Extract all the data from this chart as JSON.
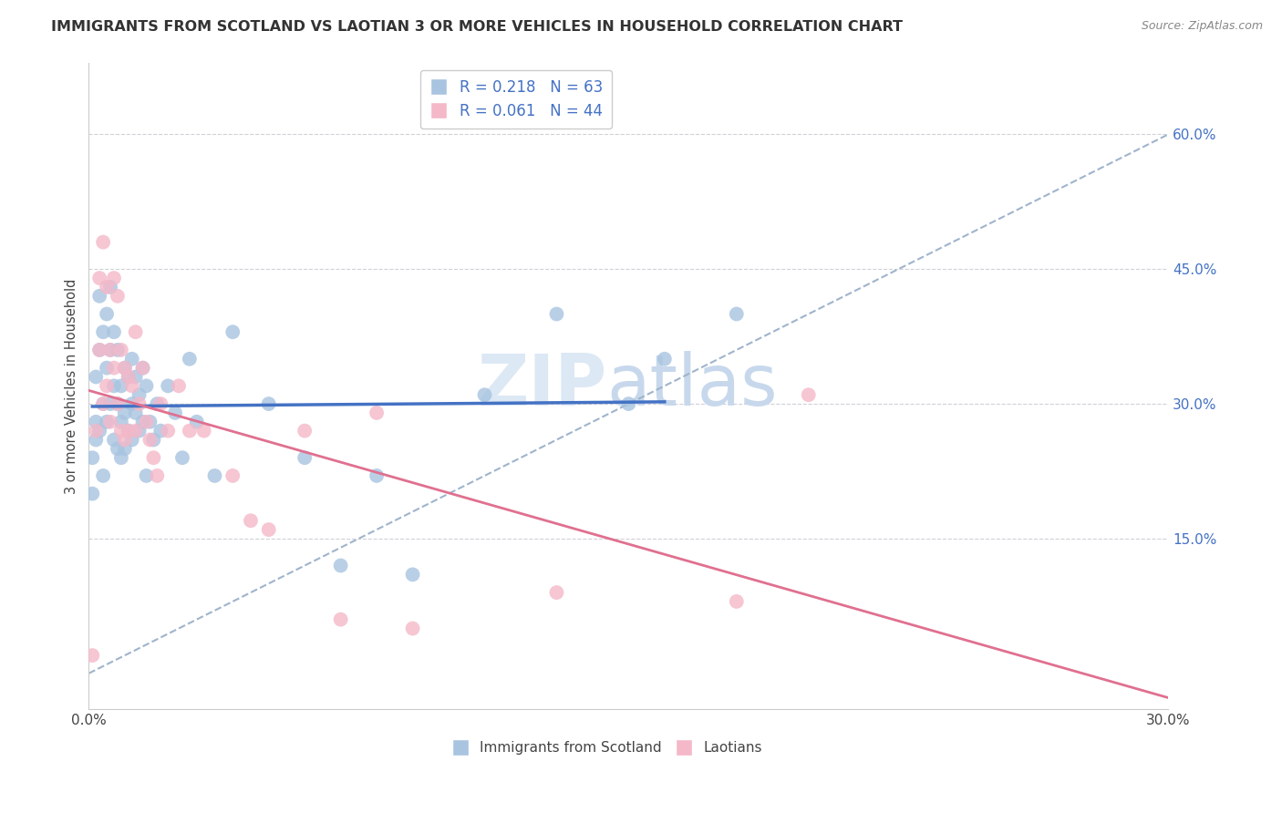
{
  "title": "IMMIGRANTS FROM SCOTLAND VS LAOTIAN 3 OR MORE VEHICLES IN HOUSEHOLD CORRELATION CHART",
  "source": "Source: ZipAtlas.com",
  "ylabel": "3 or more Vehicles in Household",
  "legend_labels": [
    "Immigrants from Scotland",
    "Laotians"
  ],
  "r_scotland": 0.218,
  "n_scotland": 63,
  "r_laotian": 0.061,
  "n_laotian": 44,
  "xlim": [
    0.0,
    0.3
  ],
  "ylim": [
    -0.04,
    0.68
  ],
  "yticks_right": [
    0.15,
    0.3,
    0.45,
    0.6
  ],
  "ytick_right_labels": [
    "15.0%",
    "30.0%",
    "45.0%",
    "60.0%"
  ],
  "xticks": [
    0.0,
    0.05,
    0.1,
    0.15,
    0.2,
    0.25,
    0.3
  ],
  "xtick_labels": [
    "0.0%",
    "",
    "",
    "",
    "",
    "",
    "30.0%"
  ],
  "color_scotland": "#a8c4e0",
  "color_laotian": "#f4b8c8",
  "line_color_scotland": "#4472c4",
  "line_color_laotian": "#e07090",
  "ref_line_color": "#a0b4cc",
  "scotland_x": [
    0.001,
    0.001,
    0.002,
    0.002,
    0.002,
    0.003,
    0.003,
    0.003,
    0.004,
    0.004,
    0.004,
    0.005,
    0.005,
    0.005,
    0.006,
    0.006,
    0.006,
    0.007,
    0.007,
    0.007,
    0.008,
    0.008,
    0.008,
    0.009,
    0.009,
    0.009,
    0.01,
    0.01,
    0.01,
    0.011,
    0.011,
    0.012,
    0.012,
    0.012,
    0.013,
    0.013,
    0.014,
    0.014,
    0.015,
    0.015,
    0.016,
    0.016,
    0.017,
    0.018,
    0.019,
    0.02,
    0.022,
    0.024,
    0.026,
    0.028,
    0.03,
    0.035,
    0.04,
    0.05,
    0.06,
    0.07,
    0.08,
    0.09,
    0.11,
    0.13,
    0.15,
    0.16,
    0.18
  ],
  "scotland_y": [
    0.24,
    0.2,
    0.28,
    0.33,
    0.26,
    0.36,
    0.42,
    0.27,
    0.38,
    0.3,
    0.22,
    0.34,
    0.4,
    0.28,
    0.43,
    0.36,
    0.3,
    0.38,
    0.32,
    0.26,
    0.36,
    0.3,
    0.25,
    0.32,
    0.28,
    0.24,
    0.34,
    0.29,
    0.25,
    0.33,
    0.27,
    0.35,
    0.3,
    0.26,
    0.33,
    0.29,
    0.31,
    0.27,
    0.34,
    0.28,
    0.32,
    0.22,
    0.28,
    0.26,
    0.3,
    0.27,
    0.32,
    0.29,
    0.24,
    0.35,
    0.28,
    0.22,
    0.38,
    0.3,
    0.24,
    0.12,
    0.22,
    0.11,
    0.31,
    0.4,
    0.3,
    0.35,
    0.4
  ],
  "laotian_x": [
    0.001,
    0.002,
    0.003,
    0.003,
    0.004,
    0.004,
    0.005,
    0.005,
    0.006,
    0.006,
    0.007,
    0.007,
    0.008,
    0.008,
    0.009,
    0.009,
    0.01,
    0.01,
    0.011,
    0.011,
    0.012,
    0.013,
    0.013,
    0.014,
    0.015,
    0.016,
    0.017,
    0.018,
    0.019,
    0.02,
    0.022,
    0.025,
    0.028,
    0.032,
    0.04,
    0.045,
    0.05,
    0.06,
    0.07,
    0.08,
    0.09,
    0.13,
    0.18,
    0.2
  ],
  "laotian_y": [
    0.02,
    0.27,
    0.44,
    0.36,
    0.48,
    0.3,
    0.43,
    0.32,
    0.36,
    0.28,
    0.44,
    0.34,
    0.42,
    0.3,
    0.36,
    0.27,
    0.34,
    0.26,
    0.33,
    0.27,
    0.32,
    0.38,
    0.27,
    0.3,
    0.34,
    0.28,
    0.26,
    0.24,
    0.22,
    0.3,
    0.27,
    0.32,
    0.27,
    0.27,
    0.22,
    0.17,
    0.16,
    0.27,
    0.06,
    0.29,
    0.05,
    0.09,
    0.08,
    0.31
  ],
  "ref_line_x": [
    0.0,
    0.3
  ],
  "ref_line_y": [
    0.0,
    0.6
  ]
}
